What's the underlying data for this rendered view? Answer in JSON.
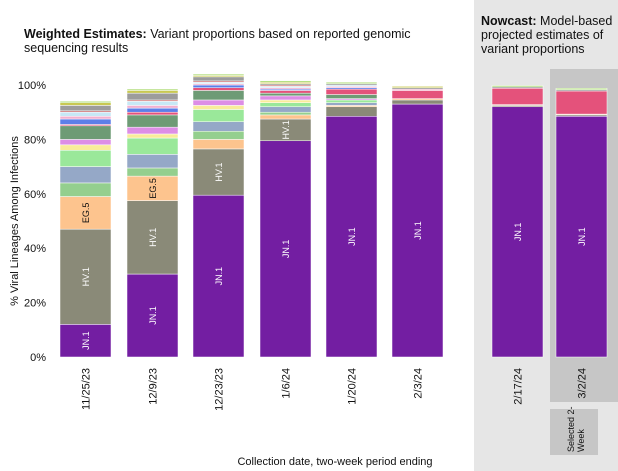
{
  "titles": {
    "weighted_bold": "Weighted Estimates:",
    "weighted_rest": " Variant proportions based on reported genomic sequencing results",
    "nowcast_bold": "Nowcast:",
    "nowcast_rest": " Model-based projected estimates of variant proportions"
  },
  "selected_label": "Selected 2-Week",
  "chart_data": {
    "type": "bar",
    "stacked": true,
    "ylabel": "% Viral Lineages Among Infections",
    "xlabel": "Collection date, two-week period ending",
    "ylim": [
      0,
      100
    ],
    "yticks": [
      "0%",
      "20%",
      "40%",
      "60%",
      "80%",
      "100%"
    ],
    "categories": [
      "11/25/23",
      "12/9/23",
      "12/23/23",
      "1/6/24",
      "1/20/24",
      "2/3/24",
      "2/17/24",
      "3/2/24"
    ],
    "weighted_categories": [
      "11/25/23",
      "12/9/23",
      "12/23/23",
      "1/6/24",
      "1/20/24",
      "2/3/24"
    ],
    "nowcast_categories": [
      "2/17/24",
      "3/2/24"
    ],
    "selected_category": "3/2/24",
    "series": [
      {
        "name": "JN.1",
        "color": "#731ea2",
        "values": [
          12,
          30.5,
          59.5,
          79.5,
          88.5,
          93,
          92,
          88.5
        ]
      },
      {
        "name": "HV.1",
        "color": "#8a8a78",
        "values": [
          35,
          27,
          17,
          8,
          3.5,
          1.5,
          0.5,
          0.5
        ]
      },
      {
        "name": "EG.5",
        "color": "#fdc48e",
        "values": [
          12,
          9,
          3.5,
          1.5,
          0.5,
          0.5,
          0.3,
          0.3
        ]
      },
      {
        "name": "",
        "color": "#94cf8e",
        "values": [
          5,
          3,
          3,
          1,
          0,
          0,
          0,
          0
        ]
      },
      {
        "name": "",
        "color": "#95a8c7",
        "values": [
          6,
          5,
          3.5,
          2,
          1,
          0,
          0,
          0
        ]
      },
      {
        "name": "",
        "color": "#9ae89a",
        "values": [
          6,
          6,
          4.5,
          1.5,
          1,
          0,
          0,
          0
        ]
      },
      {
        "name": "",
        "color": "#f8ec9a",
        "values": [
          2,
          1.5,
          1.5,
          1,
          0,
          0,
          0,
          0
        ]
      },
      {
        "name": "",
        "color": "#dd8ee6",
        "values": [
          2,
          2.5,
          2,
          1.5,
          0.5,
          0,
          0,
          0
        ]
      },
      {
        "name": "",
        "color": "#6e9b75",
        "values": [
          5,
          4.5,
          3.5,
          1,
          1.5,
          0,
          0,
          0
        ]
      },
      {
        "name": "",
        "color": "#e4527b",
        "values": [
          0.5,
          1,
          1,
          1,
          2,
          3,
          6,
          8.5
        ]
      },
      {
        "name": "",
        "color": "#5d7fe8",
        "values": [
          2,
          1.5,
          1,
          0.5,
          0.5,
          0,
          0,
          0
        ]
      },
      {
        "name": "",
        "color": "#f2b0d0",
        "values": [
          1,
          1,
          0.5,
          0.5,
          0.5,
          0.5,
          0,
          0
        ]
      },
      {
        "name": "",
        "color": "#c7e8f5",
        "values": [
          1.5,
          1.5,
          0.5,
          0.5,
          0.5,
          0,
          0,
          0
        ]
      },
      {
        "name": "",
        "color": "#cf6f6f",
        "values": [
          0.5,
          0.5,
          0.5,
          0.5,
          0,
          0,
          0,
          0
        ]
      },
      {
        "name": "",
        "color": "#9c9c9c",
        "values": [
          2,
          2.5,
          1.5,
          0.5,
          0.5,
          0.5,
          0.5,
          0.5
        ]
      },
      {
        "name": "",
        "color": "#c8c852",
        "values": [
          1,
          1,
          0.5,
          0.5,
          0,
          0.5,
          0,
          0
        ]
      },
      {
        "name": "",
        "color": "#a6d96a",
        "values": [
          0.5,
          0.5,
          0.5,
          0.5,
          0.5,
          0,
          0.5,
          0.5
        ]
      }
    ]
  }
}
